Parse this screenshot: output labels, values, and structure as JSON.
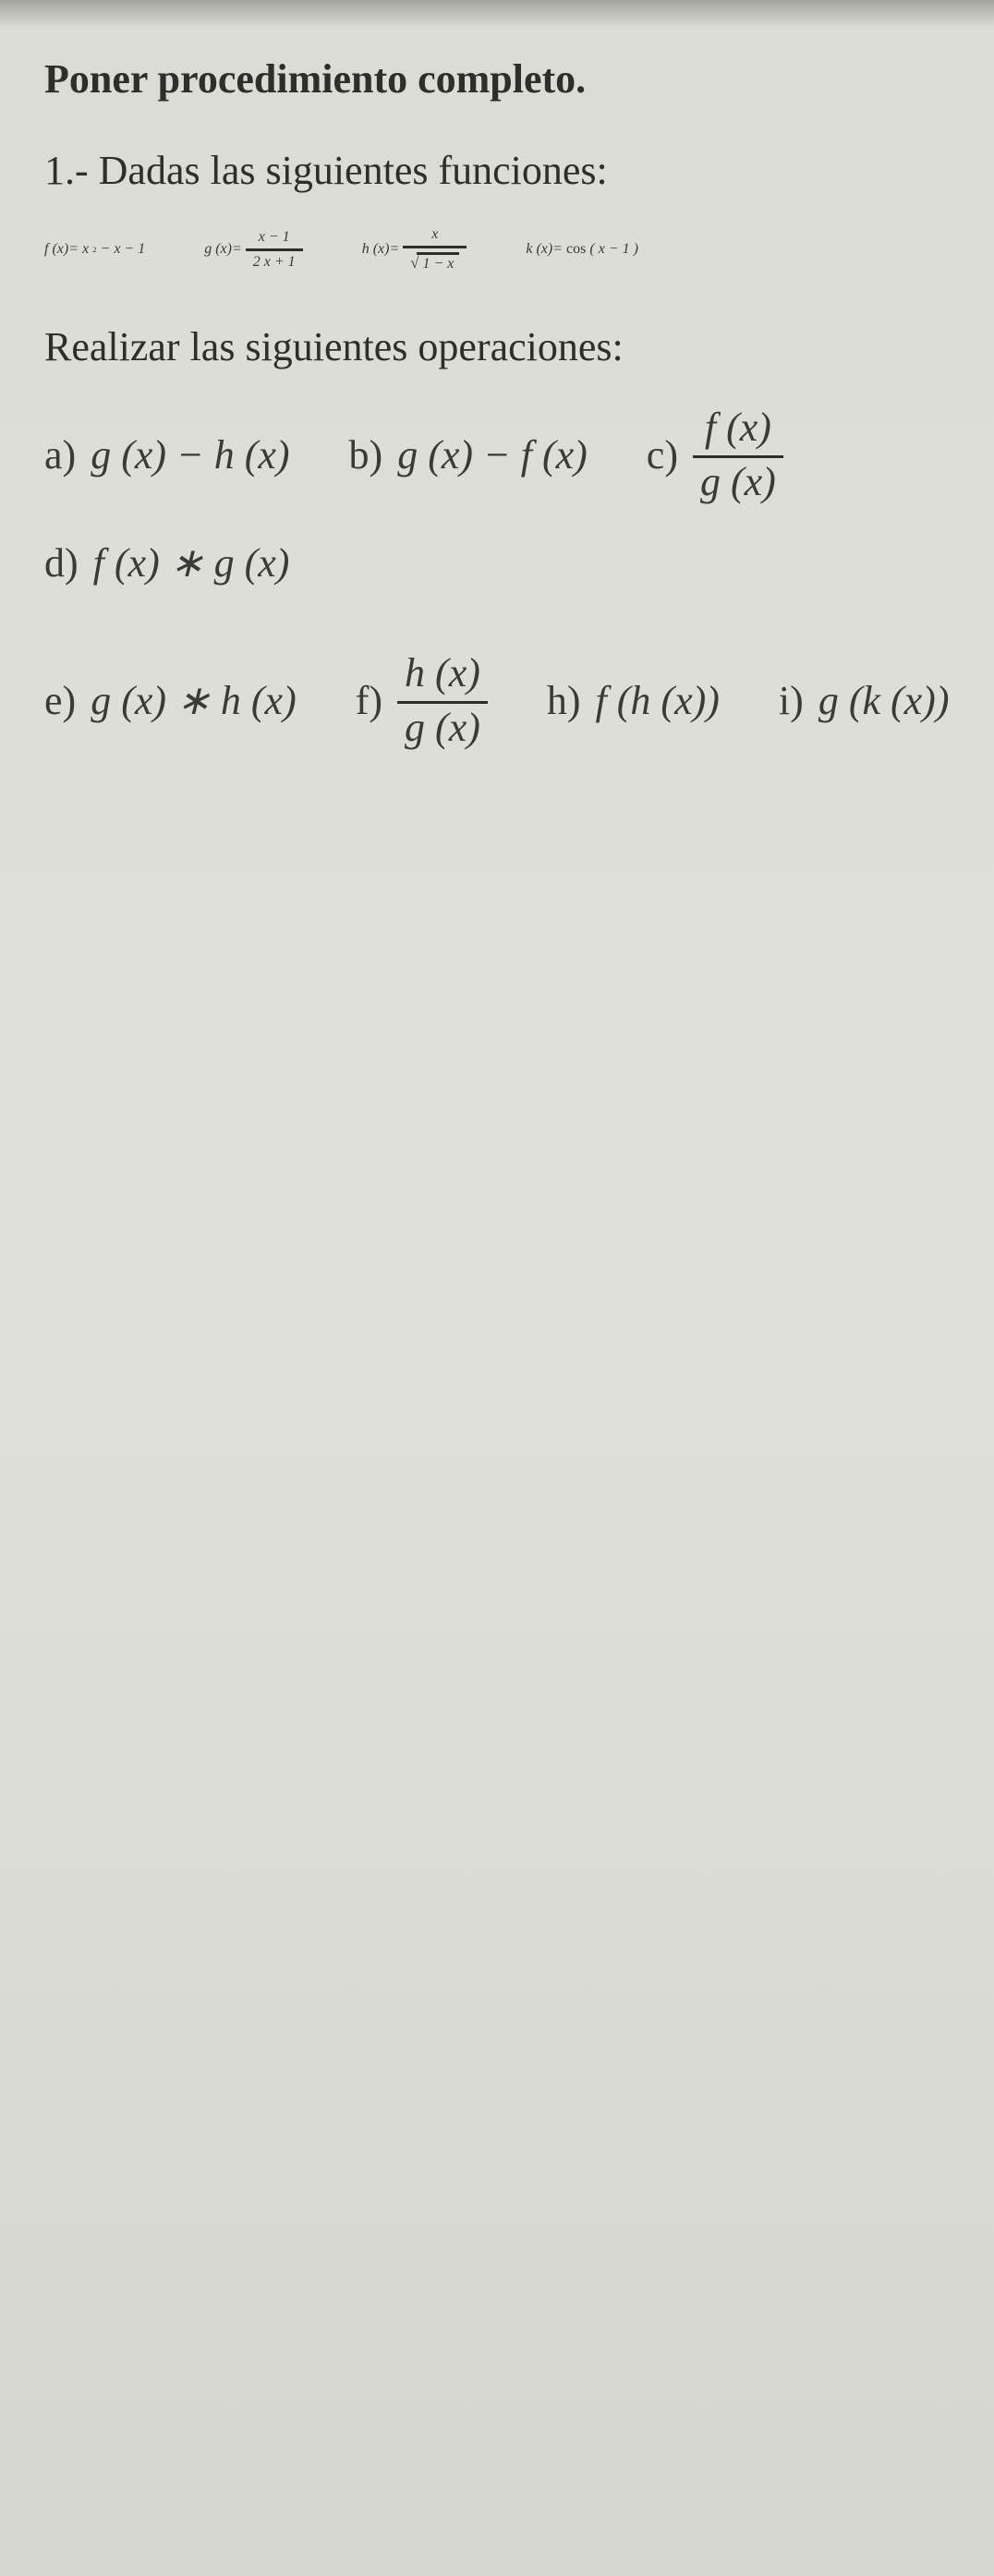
{
  "colors": {
    "background": "#d8d8d4",
    "text": "#2e2e2a",
    "rule": "#2e2e2a"
  },
  "typography": {
    "family": "Georgia, Times New Roman, serif",
    "body_size_pt": 33,
    "heading_weight": "bold"
  },
  "heading": "Poner procedimiento completo.",
  "problem_intro": "1.- Dadas las siguientes funciones:",
  "functions": {
    "f": {
      "lhs": "f (x)=",
      "rhs_plain": "x² − x − 1",
      "x2": "x",
      "exp": "2",
      "minus_x": "− x − 1"
    },
    "g": {
      "lhs": "g (x)=",
      "num": "x − 1",
      "den": "2 x + 1"
    },
    "h": {
      "lhs": "h (x)=",
      "num": "x",
      "radicand": "1 − x"
    },
    "k": {
      "lhs": "k (x)=",
      "cos": "cos",
      "arg": "( x − 1 )"
    }
  },
  "ops_heading": "Realizar las siguientes operaciones:",
  "ops": {
    "a": {
      "label": "a)",
      "expr": "g (x) − h (x)"
    },
    "b": {
      "label": "b)",
      "expr": "g (x) − f (x)"
    },
    "c": {
      "label": "c)",
      "num": "f (x)",
      "den": "g (x)"
    },
    "d": {
      "label": "d)",
      "expr": "f (x) ∗ g (x)"
    },
    "e": {
      "label": "e)",
      "expr": "g (x) ∗ h (x)"
    },
    "f": {
      "label": "f)",
      "num": "h (x)",
      "den": "g (x)"
    },
    "h": {
      "label": "h)",
      "expr": "f (h (x))"
    },
    "i": {
      "label": "i)",
      "expr": "g (k (x))"
    }
  }
}
